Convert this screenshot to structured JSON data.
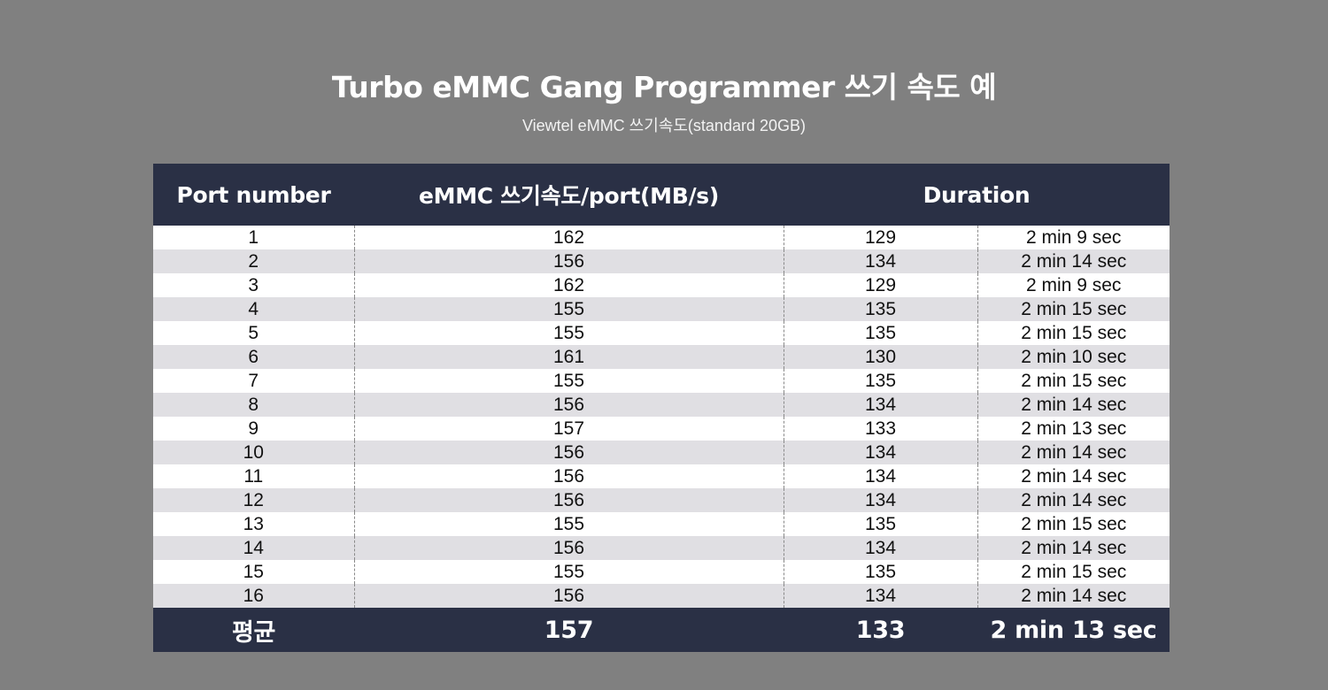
{
  "title": "Turbo eMMC Gang Programmer 쓰기 속도 예",
  "subtitle": "Viewtel eMMC 쓰기속도(standard 20GB)",
  "table": {
    "headers": {
      "port": "Port number",
      "speed": "eMMC 쓰기속도/port(MB/s)",
      "duration": "Duration"
    },
    "rows": [
      {
        "port": "1",
        "speed": "162",
        "seconds": "129",
        "time": "2 min 9 sec"
      },
      {
        "port": "2",
        "speed": "156",
        "seconds": "134",
        "time": "2 min 14 sec"
      },
      {
        "port": "3",
        "speed": "162",
        "seconds": "129",
        "time": "2 min 9 sec"
      },
      {
        "port": "4",
        "speed": "155",
        "seconds": "135",
        "time": "2 min 15 sec"
      },
      {
        "port": "5",
        "speed": "155",
        "seconds": "135",
        "time": "2 min 15 sec"
      },
      {
        "port": "6",
        "speed": "161",
        "seconds": "130",
        "time": "2 min 10 sec"
      },
      {
        "port": "7",
        "speed": "155",
        "seconds": "135",
        "time": "2 min 15 sec"
      },
      {
        "port": "8",
        "speed": "156",
        "seconds": "134",
        "time": "2 min 14 sec"
      },
      {
        "port": "9",
        "speed": "157",
        "seconds": "133",
        "time": "2 min 13 sec"
      },
      {
        "port": "10",
        "speed": "156",
        "seconds": "134",
        "time": "2 min 14 sec"
      },
      {
        "port": "11",
        "speed": "156",
        "seconds": "134",
        "time": "2 min 14 sec"
      },
      {
        "port": "12",
        "speed": "156",
        "seconds": "134",
        "time": "2 min 14 sec"
      },
      {
        "port": "13",
        "speed": "155",
        "seconds": "135",
        "time": "2 min 15 sec"
      },
      {
        "port": "14",
        "speed": "156",
        "seconds": "134",
        "time": "2 min 14 sec"
      },
      {
        "port": "15",
        "speed": "155",
        "seconds": "135",
        "time": "2 min 15 sec"
      },
      {
        "port": "16",
        "speed": "156",
        "seconds": "134",
        "time": "2 min 14 sec"
      }
    ],
    "footer": {
      "label": "평균",
      "speed": "157",
      "seconds": "133",
      "time": "2 min 13 sec"
    }
  },
  "colors": {
    "background": "#808080",
    "header_bg": "#2a3045",
    "row_alt_bg": "#e0dfe3"
  }
}
